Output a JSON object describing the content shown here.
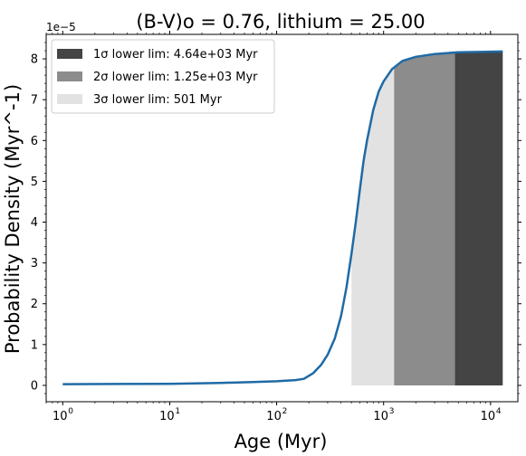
{
  "figure": {
    "title": "(B-V)o = 0.76, lithium = 25.00",
    "offset_text": "1e−5"
  },
  "chart_data": {
    "type": "line",
    "title": "(B-V)o = 0.76, lithium = 25.00",
    "xlabel": "Age (Myr)",
    "ylabel": "Probability Density (Myr^-1)",
    "xscale": "log",
    "xlim": [
      0.7,
      18000
    ],
    "ylim": [
      -0.4,
      8.6
    ],
    "y_multiplier": "1e-5",
    "x_ticks": [
      {
        "value": 1,
        "base": "10",
        "exp": "0"
      },
      {
        "value": 10,
        "base": "10",
        "exp": "1"
      },
      {
        "value": 100,
        "base": "10",
        "exp": "2"
      },
      {
        "value": 1000,
        "base": "10",
        "exp": "3"
      },
      {
        "value": 10000,
        "base": "10",
        "exp": "4"
      }
    ],
    "y_ticks": [
      0,
      1,
      2,
      3,
      4,
      5,
      6,
      7,
      8
    ],
    "series": [
      {
        "color": "#1f6aa5",
        "x": [
          1,
          10,
          30,
          60,
          100,
          150,
          180,
          220,
          260,
          300,
          350,
          400,
          450,
          500,
          550,
          600,
          650,
          700,
          800,
          900,
          1000,
          1200,
          1500,
          2000,
          3000,
          5000,
          8000,
          13000
        ],
        "y": [
          0.03,
          0.04,
          0.06,
          0.08,
          0.1,
          0.13,
          0.16,
          0.3,
          0.5,
          0.75,
          1.15,
          1.7,
          2.4,
          3.2,
          4.0,
          4.8,
          5.5,
          6.0,
          6.75,
          7.2,
          7.45,
          7.75,
          7.95,
          8.05,
          8.12,
          8.16,
          8.17,
          8.18
        ]
      }
    ],
    "bands": [
      {
        "label": "1σ lower lim: 4.64e+03 Myr",
        "start": 4640,
        "end": 13000,
        "color": "#444444"
      },
      {
        "label": "2σ lower lim: 1.25e+03 Myr",
        "start": 1250,
        "end": 4640,
        "color": "#8c8c8c"
      },
      {
        "label": "3σ lower lim: 501 Myr",
        "start": 501,
        "end": 1250,
        "color": "#e2e2e2"
      }
    ],
    "legend_position": "upper-left",
    "grid": false
  }
}
